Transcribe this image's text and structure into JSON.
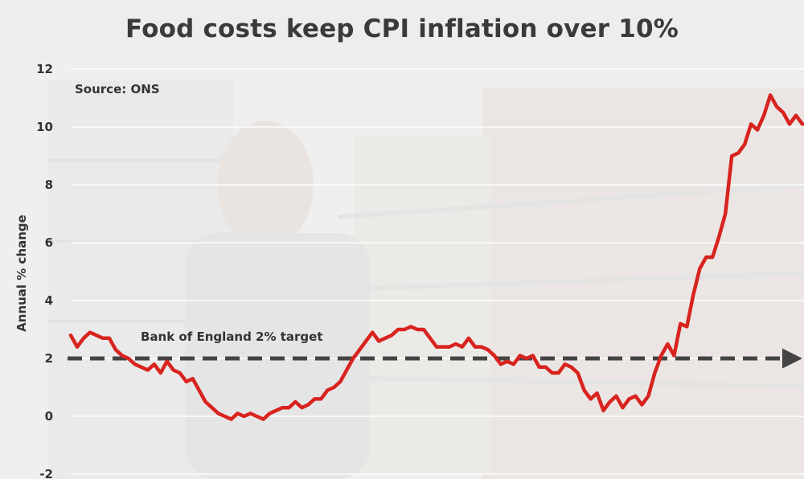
{
  "chart_data": {
    "type": "line",
    "title": "Food costs keep CPI inflation over 10%",
    "source": "Source: ONS",
    "ylabel": "Annual % change",
    "xlabel": "",
    "ylim": [
      -2,
      12
    ],
    "yticks": [
      "12",
      "10",
      "8",
      "6",
      "4",
      "2",
      "0",
      "-2"
    ],
    "grid": true,
    "reference_line": {
      "value": 2,
      "label": "Bank of England 2% target",
      "color": "#444444"
    },
    "series": [
      {
        "color": "#d8231f",
        "values": [
          2.8,
          2.4,
          2.7,
          2.9,
          2.8,
          2.7,
          2.7,
          2.3,
          2.1,
          2.0,
          1.8,
          1.7,
          1.6,
          1.8,
          1.5,
          1.9,
          1.6,
          1.5,
          1.2,
          1.3,
          0.9,
          0.5,
          0.3,
          0.1,
          0.0,
          -0.1,
          0.1,
          0.0,
          0.1,
          0.0,
          -0.1,
          0.1,
          0.2,
          0.3,
          0.3,
          0.5,
          0.3,
          0.4,
          0.6,
          0.6,
          0.9,
          1.0,
          1.2,
          1.6,
          2.0,
          2.3,
          2.6,
          2.9,
          2.6,
          2.7,
          2.8,
          3.0,
          3.0,
          3.1,
          3.0,
          3.0,
          2.7,
          2.4,
          2.4,
          2.4,
          2.5,
          2.4,
          2.7,
          2.4,
          2.4,
          2.3,
          2.1,
          1.8,
          1.9,
          1.8,
          2.1,
          2.0,
          2.1,
          1.7,
          1.7,
          1.5,
          1.5,
          1.8,
          1.7,
          1.5,
          0.9,
          0.6,
          0.8,
          0.2,
          0.5,
          0.7,
          0.3,
          0.6,
          0.7,
          0.4,
          0.7,
          1.5,
          2.1,
          2.5,
          2.1,
          3.2,
          3.1,
          4.2,
          5.1,
          5.5,
          5.5,
          6.2,
          7.0,
          9.0,
          9.1,
          9.4,
          10.1,
          9.9,
          10.4,
          11.1,
          10.7,
          10.5,
          10.1,
          10.4,
          10.1
        ]
      }
    ]
  }
}
